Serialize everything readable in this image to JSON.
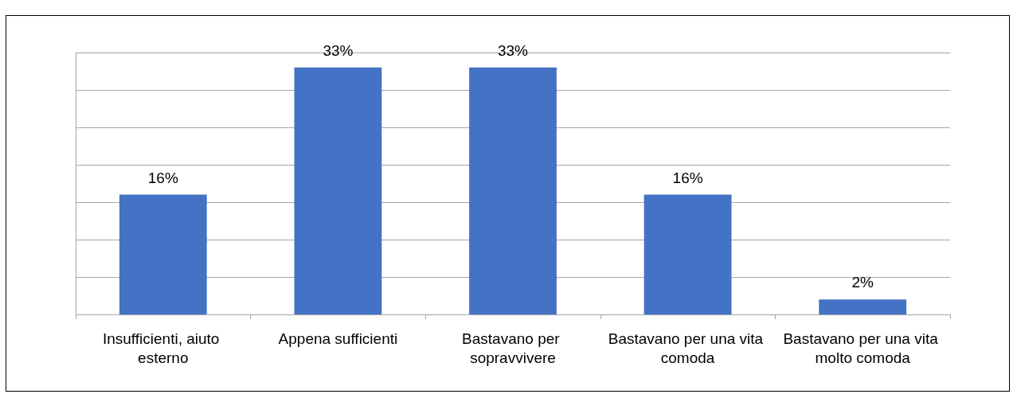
{
  "chart_data": {
    "type": "bar",
    "categories": [
      "Insufficienti, aiuto esterno",
      "Appena sufficienti",
      "Bastavano per sopravvivere",
      "Bastavano per una vita comoda",
      "Bastavano per una vita molto comoda"
    ],
    "values": [
      16,
      33,
      33,
      16,
      2
    ],
    "color": "#4472c4",
    "value_labels": [
      "16%",
      "33%",
      "33%",
      "16%",
      "2%"
    ],
    "ylim": [
      0,
      35
    ],
    "yticks": [
      {
        "value": 0,
        "label": null
      },
      {
        "value": 5,
        "label": null
      },
      {
        "value": 10,
        "label": null
      },
      {
        "value": 15,
        "label": null
      },
      {
        "value": 20,
        "label": null
      },
      {
        "value": 25,
        "label": null
      },
      {
        "value": 30,
        "label": null
      },
      {
        "value": 35,
        "label": null
      }
    ],
    "grid": "y",
    "tick_labels": "x"
  }
}
